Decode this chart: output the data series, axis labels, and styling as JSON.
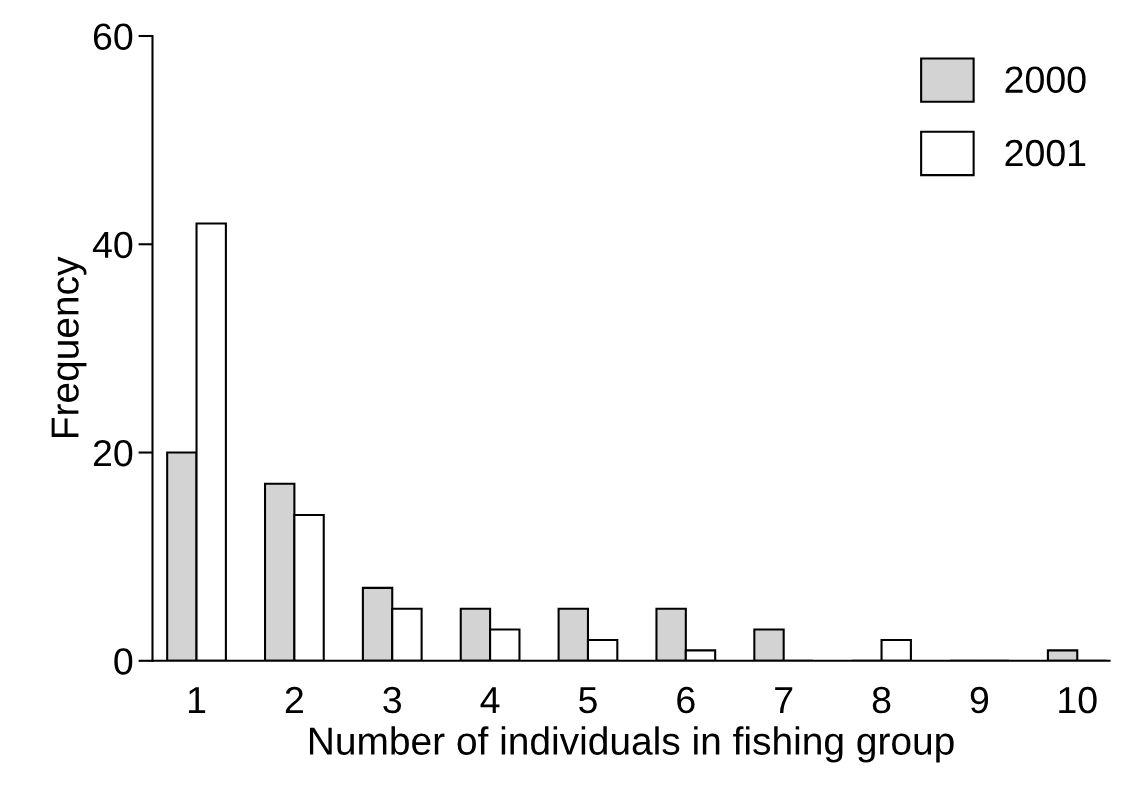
{
  "chart_data": {
    "type": "bar",
    "xlabel": "Number of individuals in fishing group",
    "ylabel": "Frequency",
    "categories": [
      "1",
      "2",
      "3",
      "4",
      "5",
      "6",
      "7",
      "8",
      "9",
      "10"
    ],
    "series": [
      {
        "name": "2000",
        "color": "#d3d3d3",
        "values": [
          20,
          17,
          7,
          5,
          5,
          5,
          3,
          0,
          0,
          1
        ]
      },
      {
        "name": "2001",
        "color": "#ffffff",
        "values": [
          42,
          14,
          5,
          3,
          2,
          1,
          0,
          2,
          0,
          0
        ]
      }
    ],
    "ylim": [
      0,
      60
    ],
    "yticks": [
      0,
      20,
      40,
      60
    ],
    "grid": false,
    "legend": "top right"
  }
}
